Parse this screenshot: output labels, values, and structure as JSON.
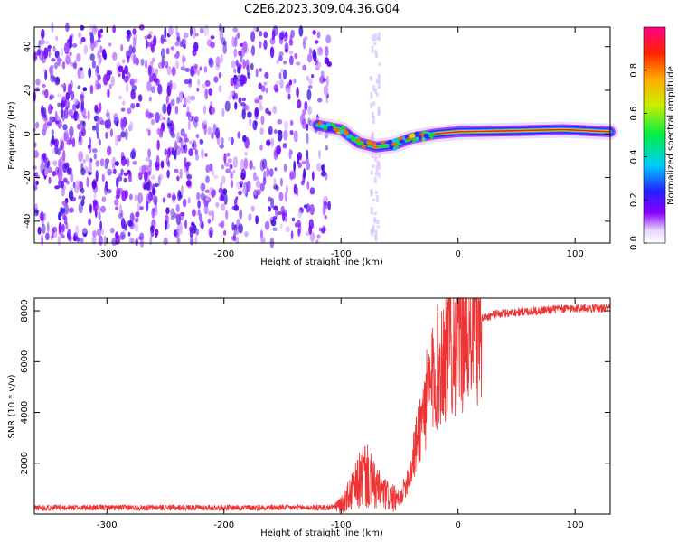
{
  "figure": {
    "title": "C2E6.2023.309.04.36.G04"
  },
  "chart_data": [
    {
      "type": "heatmap",
      "xlabel": "Height of straight line (km)",
      "ylabel": "Frequency (Hz)",
      "xlim": [
        -362,
        130
      ],
      "ylim": [
        -50,
        49
      ],
      "xticks": [
        -300,
        -200,
        -100,
        0,
        100
      ],
      "yticks": [
        -40,
        -20,
        0,
        20,
        40
      ],
      "colorbar": {
        "label": "Normalized spectral amplitude",
        "range": [
          0,
          1
        ],
        "ticks": [
          0.0,
          0.2,
          0.4,
          0.6,
          0.8
        ],
        "colormap": "rainbow (white → violet → blue → cyan → green → yellow → red → magenta)"
      },
      "features": {
        "noise_region_x": [
          -362,
          -110
        ],
        "signal_trace": [
          {
            "x": -120,
            "f": 4
          },
          {
            "x": -100,
            "f": 2
          },
          {
            "x": -85,
            "f": -4
          },
          {
            "x": -70,
            "f": -6
          },
          {
            "x": -55,
            "f": -5
          },
          {
            "x": -40,
            "f": -2
          },
          {
            "x": -20,
            "f": 0
          },
          {
            "x": 0,
            "f": 1
          },
          {
            "x": 50,
            "f": 1.5
          },
          {
            "x": 90,
            "f": 2
          },
          {
            "x": 130,
            "f": 1
          }
        ]
      }
    },
    {
      "type": "line",
      "xlabel": "Height of straight line (km)",
      "ylabel": "SNR (10 * v/v)",
      "xlim": [
        -362,
        130
      ],
      "ylim": [
        0,
        8500
      ],
      "xticks": [
        -300,
        -200,
        -100,
        0,
        100
      ],
      "yticks": [
        2000,
        4000,
        6000,
        8000
      ],
      "series": [
        {
          "color": "#ee3333",
          "envelope": [
            {
              "x": -362,
              "y": 250
            },
            {
              "x": -200,
              "y": 250
            },
            {
              "x": -110,
              "y": 250
            },
            {
              "x": -100,
              "y": 350
            },
            {
              "x": -90,
              "y": 900
            },
            {
              "x": -80,
              "y": 1600
            },
            {
              "x": -70,
              "y": 1000
            },
            {
              "x": -60,
              "y": 700
            },
            {
              "x": -50,
              "y": 500
            },
            {
              "x": -40,
              "y": 1800
            },
            {
              "x": -30,
              "y": 4000
            },
            {
              "x": -20,
              "y": 5500
            },
            {
              "x": -10,
              "y": 6500
            },
            {
              "x": 0,
              "y": 7000
            },
            {
              "x": 10,
              "y": 7500
            },
            {
              "x": 20,
              "y": 7700
            },
            {
              "x": 30,
              "y": 7850
            },
            {
              "x": 50,
              "y": 7950
            },
            {
              "x": 80,
              "y": 8050
            },
            {
              "x": 100,
              "y": 8100
            },
            {
              "x": 130,
              "y": 8100
            }
          ]
        }
      ]
    }
  ]
}
